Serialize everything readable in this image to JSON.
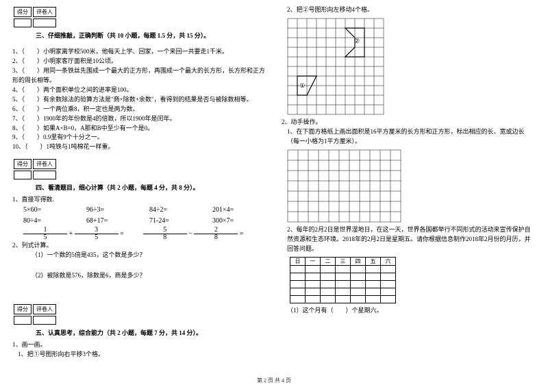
{
  "scoreBox": {
    "label1": "得分",
    "label2": "评卷人"
  },
  "section3": {
    "title": "三、仔细推敲，正确判断（共 10 小题，每题 1.5 分，共 15 分）。",
    "items": [
      "1、（　　）小明家离学校500米，他每天上学、回家，一个来回一共要走1千米。",
      "2、（　　）小明家客厅面积是10公顷。",
      "3、（　　）用同一条铁丝先围成一个最大的正方形，再围成一个最大的长方形，长方形和正方形的周长相等。",
      "4、（　　）两个面积单位之间的进率是100。",
      "5、（　　）有余数除法的验算方法是\"商×除数+余数\"，看得到的结果是否与被除数相等。",
      "6、（　　）一个两位乘8，积一定也是两为数。",
      "7、（　　）1900年的年份数是4的倍数，所以1900年是闰年。",
      "8、（　　）如果A×B=0，A那和B中至少有一个是0。",
      "9、（　　）0.9里有9个十分之一。",
      "10、（　　）1吨铁与1吨棉花一样重。"
    ]
  },
  "section4": {
    "title": "四、看清题目，细心计算（共 2 小题，每题 4 分，共 8 分）。",
    "sub1": "1、直接写得数.",
    "row1": [
      "5×60=",
      "96÷3=",
      "84÷2=",
      "201×4="
    ],
    "row2": [
      "80÷4=",
      "68+17=",
      "71-24=",
      "300×7="
    ],
    "fracA": {
      "n1": "1",
      "d1": "5",
      "op": "+",
      "n2": "3",
      "d2": "5"
    },
    "fracB": {
      "n1": "5",
      "d1": "8",
      "op": "−",
      "n2": "2",
      "d2": "8"
    },
    "sub2": "2、列式计算。",
    "q1": "（1）一个数的5倍是435，这个数是多少？",
    "q2": "（2）被除数是576，除数是6，商是多少？"
  },
  "section5": {
    "title": "五、认真思考，综合能力（共 2 小题，每题 7 分，共 14 分）。",
    "sub1": "1、画一画。",
    "q1": "1、把①号图形向右平移3个格。"
  },
  "right": {
    "top": "2、把②号图形向左移动4个格。",
    "q2h": "2、动手操作。",
    "q2a": "1、在下面方格纸上画出面积是16平方厘米的长方形和正方形，标出相应的长、宽或边长（每一小格为1平方厘米）。",
    "q2b": "2、每年的2月2日是世界湿地日，在这一天，世界各国都举行不同形式的活动来宣传保护自然资源和生态环境。2018年的2月2日是星期五。请你根据信息制作2018年2月份的月历，并回答问题。",
    "calHead": [
      "日",
      "一",
      "二",
      "三",
      "四",
      "五",
      "六"
    ],
    "q2c": "（1）这个月有（　　）个星期六。"
  },
  "footer": "第 2 页 共 4 页",
  "gridStyle": {
    "cols": 10,
    "rows": 10,
    "cell": 14,
    "stroke": "#000",
    "shapeStroke": "#000"
  },
  "grid2Style": {
    "cols": 11,
    "rows": 7,
    "cell": 15,
    "stroke": "#000"
  }
}
